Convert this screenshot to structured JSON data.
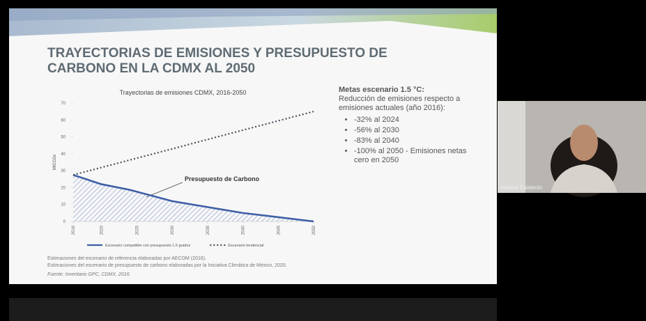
{
  "slide": {
    "title_lines": [
      "TRAYECTORIAS DE EMISIONES Y PRESUPUESTO DE",
      "CARBONO EN LA CDMX AL 2050"
    ],
    "targets": {
      "heading": "Metas escenario 1.5 °C:",
      "intro": "Reducción de emisiones respecto a emisiones actuales (año 2016):",
      "bullets": [
        "-32% al 2024",
        "-56% al 2030",
        "-83% al 2040",
        "-100% al 2050 - Emisiones netas cero en 2050"
      ]
    },
    "notes": [
      "Estimaciones del escenario de referencia elaboradas por AECOM (2016).",
      "Estimaciones del escenario de presupuesto de carbono elaboradas por la Iniciativa Climática de México, 2020."
    ],
    "source": "Fuente: Inventario GPC, CDMX, 2016."
  },
  "participant": {
    "name": "Andrea Calderón"
  },
  "chart_data": {
    "type": "line",
    "title": "Trayectorias de emisiones CDMX, 2016-2050",
    "ylabel": "MtCO2e",
    "annotation": "Presupuesto de Carbono",
    "x": [
      2016,
      2020,
      2024,
      2030,
      2040,
      2050
    ],
    "xlim": [
      2016,
      2050
    ],
    "xticks": [
      2016,
      2020,
      2025,
      2030,
      2035,
      2040,
      2045,
      2050
    ],
    "ylim": [
      0,
      70
    ],
    "yticks": [
      0,
      10,
      20,
      30,
      40,
      50,
      60,
      70
    ],
    "series": [
      {
        "name": "Escenario compatible con presupuesto 1.5 grados",
        "color": "#3d5fa6",
        "style": "solid",
        "fill": "hatch",
        "values": [
          27.5,
          22,
          18.7,
          12,
          5,
          0
        ]
      },
      {
        "name": "Escenario tendencial",
        "color": "#4a4f5a",
        "style": "dotted",
        "values": [
          27.5,
          31.9,
          36.3,
          42.9,
          54,
          65
        ]
      }
    ]
  }
}
